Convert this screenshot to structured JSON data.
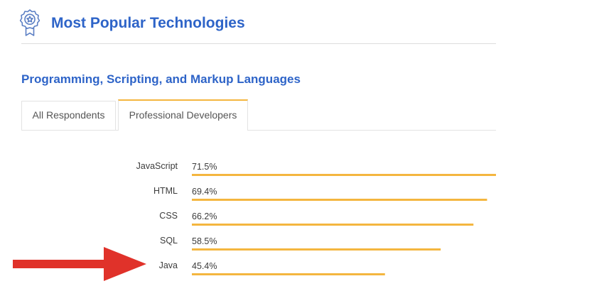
{
  "header": {
    "title": "Most Popular Technologies",
    "icon": "award-ribbon-icon",
    "accent_color": "#2e64c8"
  },
  "section": {
    "title": "Programming, Scripting, and Markup Languages"
  },
  "tabs": [
    {
      "label": "All Respondents",
      "active": false
    },
    {
      "label": "Professional Developers",
      "active": true
    }
  ],
  "chart_data": {
    "type": "bar",
    "orientation": "horizontal",
    "title": "",
    "xlabel": "",
    "ylabel": "",
    "xlim": [
      0,
      71.5
    ],
    "grid": false,
    "bar_color": "#f4b63f",
    "categories": [
      "JavaScript",
      "HTML",
      "CSS",
      "SQL",
      "Java"
    ],
    "values": [
      71.5,
      69.4,
      66.2,
      58.5,
      45.4
    ],
    "value_labels": [
      "71.5%",
      "69.4%",
      "66.2%",
      "58.5%",
      "45.4%"
    ]
  },
  "annotation": {
    "type": "arrow",
    "points_to": "Java",
    "color": "#e0322a"
  }
}
